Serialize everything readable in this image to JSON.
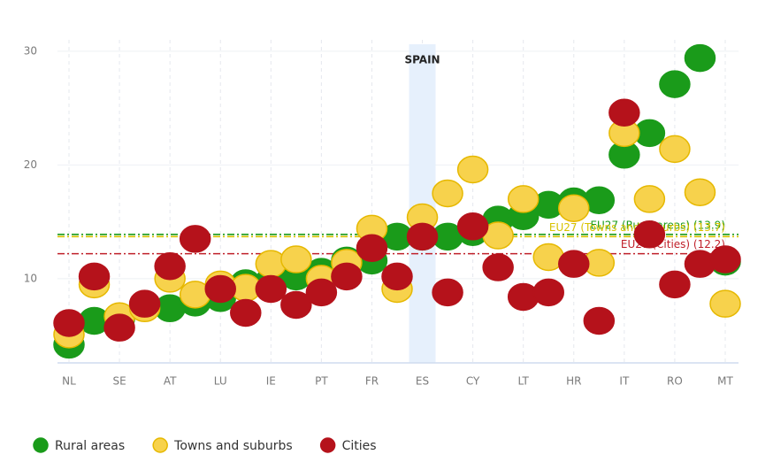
{
  "chart_data": {
    "type": "dot",
    "categories": [
      "NL",
      null,
      "SE",
      null,
      "AT",
      null,
      "LU",
      null,
      "IE",
      null,
      "PT",
      null,
      "FR",
      null,
      "ES",
      null,
      "CY",
      null,
      "LT",
      null,
      "HR",
      null,
      "IT",
      null,
      "RO",
      null,
      "MT"
    ],
    "series": [
      {
        "name": "Rural areas",
        "color": "#1a9b1a",
        "values": [
          4.2,
          6.3,
          6.5,
          7.7,
          7.4,
          7.9,
          8.3,
          9.6,
          9.8,
          10.2,
          10.6,
          11.6,
          11.6,
          13.7,
          13.7,
          13.7,
          14.1,
          15.2,
          15.5,
          16.5,
          16.8,
          16.9,
          20.9,
          22.8,
          27.1,
          29.4,
          11.5
        ]
      },
      {
        "name": "Towns and suburbs",
        "color": "#f7d24c",
        "values": [
          5.1,
          9.5,
          6.7,
          7.4,
          10.0,
          8.6,
          9.5,
          9.2,
          11.3,
          11.7,
          10.0,
          11.4,
          14.4,
          9.1,
          15.4,
          17.5,
          19.6,
          13.8,
          17.0,
          11.9,
          16.2,
          11.4,
          22.8,
          17.0,
          21.4,
          17.6,
          7.8
        ]
      },
      {
        "name": "Cities",
        "color": "#b5121b",
        "values": [
          6.1,
          10.2,
          5.7,
          7.8,
          11.1,
          13.5,
          9.1,
          7.0,
          9.1,
          7.7,
          8.8,
          10.2,
          12.7,
          10.2,
          13.7,
          8.8,
          14.6,
          11.0,
          8.4,
          8.8,
          11.3,
          6.3,
          24.6,
          13.9,
          9.5,
          11.3,
          11.7
        ]
      }
    ],
    "reference_lines": [
      {
        "label": "EU27 (Rural areas) (13.9)",
        "value": 13.9,
        "color": "#1a9b1a"
      },
      {
        "label": "EU27 (Towns and suburbs) (13.7)",
        "value": 13.7,
        "color": "#d9c200"
      },
      {
        "label": "EU27 (Cities) (12.2)",
        "value": 12.2,
        "color": "#c0202a"
      }
    ],
    "highlight": "ES",
    "highlight_label": "SPAIN",
    "ylim": [
      2.6,
      31
    ],
    "yticks": [
      10,
      20,
      30
    ],
    "grid": true
  }
}
